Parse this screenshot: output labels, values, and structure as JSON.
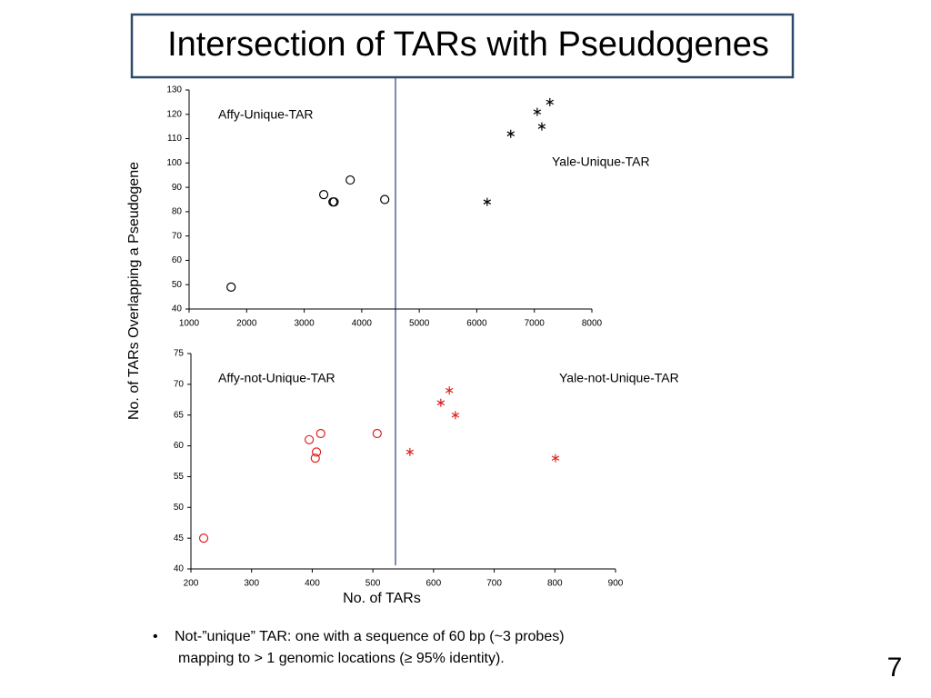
{
  "title": "Intersection of TARs with Pseudogenes",
  "chart_data": [
    {
      "type": "scatter",
      "ylabel": "No. of TARs Overlapping a Pseudogene",
      "xlim": [
        1000,
        8000
      ],
      "xticks": [
        1000,
        2000,
        3000,
        4000,
        5000,
        6000,
        7000,
        8000
      ],
      "ylim": [
        40,
        130
      ],
      "yticks": [
        40,
        50,
        60,
        70,
        80,
        90,
        100,
        110,
        120,
        130
      ],
      "series": [
        {
          "name": "Affy-Unique-TAR",
          "color": "#000000",
          "marker": "circle",
          "x": [
            1730,
            3340,
            3500,
            3520,
            3800,
            4400
          ],
          "values": [
            49,
            87,
            84,
            84,
            93,
            85
          ]
        },
        {
          "name": "Yale-Unique-TAR",
          "color": "#000000",
          "marker": "star",
          "x": [
            6180,
            6590,
            7050,
            7130,
            7270
          ],
          "values": [
            84,
            112,
            121,
            115,
            125
          ]
        }
      ]
    },
    {
      "type": "scatter",
      "xlabel": "No. of TARs",
      "xlim": [
        200,
        900
      ],
      "xticks": [
        200,
        300,
        400,
        500,
        600,
        700,
        800,
        900
      ],
      "ylim": [
        40,
        75
      ],
      "yticks": [
        40,
        45,
        50,
        55,
        60,
        65,
        70,
        75
      ],
      "series": [
        {
          "name": "Affy-not-Unique-TAR",
          "color": "#e0201b",
          "marker": "circle",
          "x": [
            221,
            395,
            407,
            405,
            414,
            507
          ],
          "values": [
            45,
            61,
            59,
            58,
            62,
            62
          ]
        },
        {
          "name": "Yale-not-Unique-TAR",
          "color": "#e0201b",
          "marker": "star",
          "x": [
            561,
            612,
            626,
            636,
            801
          ],
          "values": [
            59,
            67,
            69,
            65,
            58
          ]
        }
      ]
    }
  ],
  "notes": [
    "Not-”unique” TAR: one with a sequence of 60 bp (~3 probes)",
    "mapping to > 1 genomic locations (≥ 95% identity)."
  ],
  "page": 7
}
